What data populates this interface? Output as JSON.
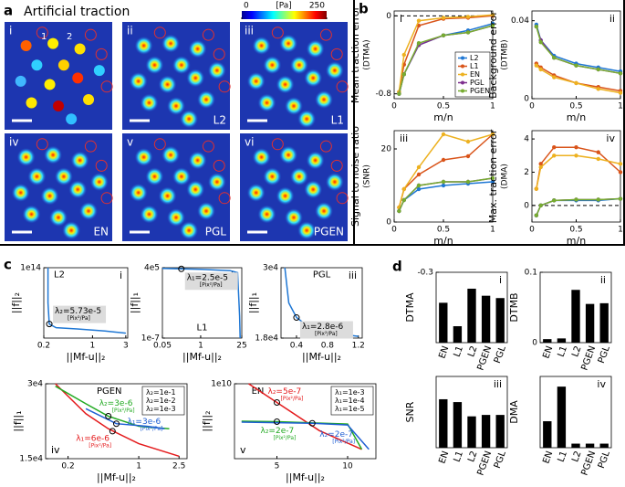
{
  "panel_labels": [
    "a",
    "b",
    "c",
    "d"
  ],
  "panel_a": {
    "title": "Artificial traction",
    "colorbar": {
      "lim": [
        0,
        250
      ],
      "ticks": [
        0,
        250
      ],
      "unit": "[Pa]"
    },
    "cell_ids": [
      "1",
      "2"
    ],
    "tiles": [
      {
        "numeral": "i"
      },
      {
        "numeral": "ii",
        "method": "L2"
      },
      {
        "numeral": "iii",
        "method": "L1"
      },
      {
        "numeral": "iv",
        "method": "EN"
      },
      {
        "numeral": "v",
        "method": "PGL"
      },
      {
        "numeral": "vi",
        "method": "PGEN"
      }
    ]
  },
  "chart_data": [
    {
      "type": "line",
      "numeral": "i",
      "ylabel": [
        "Mean traction error",
        "(DTMA)"
      ],
      "xlabel": "m/n",
      "x": [
        0.05,
        0.1,
        0.25,
        0.5,
        0.75,
        1
      ],
      "xlim": [
        0,
        1
      ],
      "xticks": [
        0,
        0.5,
        1
      ],
      "ylim": [
        -0.85,
        0.05
      ],
      "yticks": [
        -0.8,
        0
      ],
      "reference_line": 0,
      "markers": true,
      "legend": "lower right",
      "series": [
        {
          "name": "L2",
          "color": "#1f77d4",
          "values": [
            -0.8,
            -0.6,
            -0.3,
            -0.2,
            -0.15,
            -0.08
          ]
        },
        {
          "name": "L1",
          "color": "#d9541a",
          "values": [
            -0.78,
            -0.5,
            -0.1,
            -0.03,
            -0.02,
            0
          ]
        },
        {
          "name": "EN",
          "color": "#edb120",
          "values": [
            -0.78,
            -0.4,
            -0.05,
            -0.02,
            -0.01,
            0.01
          ]
        },
        {
          "name": "PGL",
          "color": "#7e2f8e",
          "values": [
            -0.8,
            -0.6,
            -0.3,
            -0.2,
            -0.17,
            -0.1
          ]
        },
        {
          "name": "PGEN",
          "color": "#77ac30",
          "values": [
            -0.8,
            -0.6,
            -0.28,
            -0.2,
            -0.17,
            -0.1
          ]
        }
      ]
    },
    {
      "type": "line",
      "numeral": "ii",
      "ylabel": [
        "Background error",
        "(DTMB)"
      ],
      "xlabel": "m/n",
      "x": [
        0.05,
        0.1,
        0.25,
        0.5,
        0.75,
        1
      ],
      "xlim": [
        0,
        1
      ],
      "xticks": [
        0,
        0.5,
        1
      ],
      "ylim": [
        0,
        0.045
      ],
      "yticks": [
        0,
        0.04
      ],
      "markers": true,
      "series": [
        {
          "color": "#1f77d4",
          "values": [
            0.038,
            0.03,
            0.022,
            0.018,
            0.016,
            0.014
          ]
        },
        {
          "color": "#d9541a",
          "values": [
            0.018,
            0.016,
            0.012,
            0.008,
            0.006,
            0.004
          ]
        },
        {
          "color": "#edb120",
          "values": [
            0.017,
            0.015,
            0.011,
            0.008,
            0.005,
            0.003
          ]
        },
        {
          "color": "#7e2f8e",
          "values": [
            0.037,
            0.03,
            0.021,
            0.017,
            0.015,
            0.013
          ]
        },
        {
          "color": "#77ac30",
          "values": [
            0.037,
            0.029,
            0.021,
            0.017,
            0.015,
            0.013
          ]
        }
      ]
    },
    {
      "type": "line",
      "numeral": "iii",
      "ylabel": [
        "Signal to noise ratio",
        "(SNR)"
      ],
      "xlabel": "m/n",
      "x": [
        0.05,
        0.1,
        0.25,
        0.5,
        0.75,
        1
      ],
      "xlim": [
        0,
        1
      ],
      "xticks": [
        0,
        0.5,
        1
      ],
      "ylim": [
        0,
        25
      ],
      "yticks": [
        0,
        20
      ],
      "markers": true,
      "series": [
        {
          "color": "#1f77d4",
          "values": [
            3,
            6,
            9,
            10,
            10.5,
            11
          ]
        },
        {
          "color": "#d9541a",
          "values": [
            4,
            9,
            13,
            17,
            18,
            24
          ]
        },
        {
          "color": "#edb120",
          "values": [
            4,
            9,
            15,
            24,
            22,
            24
          ]
        },
        {
          "color": "#7e2f8e",
          "values": [
            3,
            6,
            10,
            11,
            11,
            12
          ]
        },
        {
          "color": "#77ac30",
          "values": [
            3,
            6,
            10,
            11,
            11,
            12
          ]
        }
      ]
    },
    {
      "type": "line",
      "numeral": "iv",
      "ylabel": [
        "Max. traction error",
        "(DMA)"
      ],
      "xlabel": "m/n",
      "x": [
        0.05,
        0.1,
        0.25,
        0.5,
        0.75,
        1
      ],
      "xlim": [
        0,
        1
      ],
      "xticks": [
        0,
        0.5,
        1
      ],
      "ylim": [
        -1,
        4.5
      ],
      "yticks": [
        0,
        2,
        4
      ],
      "reference_line": 0,
      "markers": true,
      "series": [
        {
          "color": "#1f77d4",
          "values": [
            -0.6,
            0,
            0.3,
            0.3,
            0.3,
            0.4
          ]
        },
        {
          "color": "#d9541a",
          "values": [
            1,
            2.5,
            3.5,
            3.5,
            3.2,
            2
          ]
        },
        {
          "color": "#edb120",
          "values": [
            1,
            2.3,
            3,
            3,
            2.8,
            2.5
          ]
        },
        {
          "color": "#7e2f8e",
          "values": [
            -0.6,
            0,
            0.3,
            0.35,
            0.35,
            0.4
          ]
        },
        {
          "color": "#77ac30",
          "values": [
            -0.6,
            0,
            0.3,
            0.35,
            0.35,
            0.4
          ]
        }
      ]
    },
    {
      "type": "line",
      "numeral": "i",
      "title": "L2",
      "ylabel": [
        "||f||₂"
      ],
      "xlabel": "||Mf-u||₂",
      "xscale": "log",
      "yscale": "log",
      "xlim": [
        0.2,
        3.2
      ],
      "xticks": [
        0.2,
        1,
        3
      ],
      "ylim": [
        10000,
        100000000000000.0
      ],
      "yticks": [
        {
          "value": 100000000000000.0,
          "label": "1e14"
        }
      ],
      "series": [
        {
          "color": "#1f77d4",
          "x": [
            0.23,
            0.23,
            0.24,
            0.3,
            0.6,
            1.5,
            3
          ],
          "values": [
            100000000000000.0,
            1000000000.0,
            1000000.0,
            300000,
            200000,
            100000,
            50000
          ]
        }
      ],
      "annotations": [
        {
          "text": "λ₂=5.73e-5",
          "unit": "[Pix²/Pa]",
          "color": "#000000",
          "x": 0.24,
          "y": 1000000.0
        }
      ]
    },
    {
      "type": "line",
      "numeral": "ii",
      "title": "L1",
      "ylabel": [
        "||f||₁"
      ],
      "xlabel": "||Mf-u||₂",
      "xscale": "log",
      "yscale": "log",
      "xlim": [
        0.05,
        25
      ],
      "xticks": [
        0.05,
        1,
        25
      ],
      "ylim": [
        1e-07,
        400000
      ],
      "yticks": [
        {
          "value": 400000,
          "label": "4e5"
        },
        {
          "value": 1e-07,
          "label": "1e-7"
        }
      ],
      "series": [
        {
          "color": "#1f77d4",
          "x": [
            0.05,
            1,
            10,
            18,
            21,
            22
          ],
          "values": [
            300000,
            200000,
            120000,
            50000,
            0.001,
            1e-07
          ]
        }
      ],
      "annotations": [
        {
          "text": "λ₁=2.5e-5",
          "unit": "[Pix²/Pa]",
          "color": "#000000",
          "x": 0.22,
          "y": 250000
        }
      ]
    },
    {
      "type": "line",
      "numeral": "iii",
      "title": "PGL",
      "ylabel": [
        "||f||₁"
      ],
      "xlabel": "||Mf-u||₂",
      "xlim": [
        0.2,
        1.25
      ],
      "xticks": [
        0.4,
        0.8,
        1.2
      ],
      "ylim": [
        18000,
        30000
      ],
      "yticks": [
        {
          "value": 30000,
          "label": "3e4"
        },
        {
          "value": 18000,
          "label": "1.8e4"
        }
      ],
      "series": [
        {
          "color": "#1f77d4",
          "x": [
            0.25,
            0.3,
            0.4,
            0.6,
            0.9,
            1.2
          ],
          "values": [
            30000,
            24000,
            21500,
            19500,
            18800,
            18300
          ]
        }
      ],
      "annotations": [
        {
          "text": "λ₁=2.8e-6",
          "unit": "[Pix²/Pa]",
          "color": "#000000",
          "x": 0.4,
          "y": 21500
        }
      ]
    },
    {
      "type": "line",
      "numeral": "iv",
      "title": "PGEN",
      "ylabel": [
        "||f||₁"
      ],
      "xlabel": "||Mf-u||₂",
      "xscale": "log",
      "xlim": [
        0.12,
        3
      ],
      "xticks": [
        0.2,
        1,
        2.5
      ],
      "ylim": [
        15000,
        30000
      ],
      "yticks": [
        {
          "value": 30000,
          "label": "3e4"
        },
        {
          "value": 15000,
          "label": "1.5e4"
        }
      ],
      "legend": "upper right",
      "legend_swatches": false,
      "series": [
        {
          "name": "λ₂=1e-1",
          "color": "#e41a1c",
          "x": [
            0.15,
            0.3,
            0.5,
            1,
            2.5
          ],
          "values": [
            30000,
            24000,
            21000,
            18000,
            15500
          ]
        },
        {
          "name": "λ₂=1e-2",
          "color": "#22aa22",
          "x": [
            0.15,
            0.3,
            0.5,
            1,
            2
          ],
          "values": [
            29500,
            26000,
            23500,
            21500,
            21000
          ]
        },
        {
          "name": "λ₂=1e-3",
          "color": "#1f5fd4",
          "x": [
            0.3,
            0.6,
            1.2,
            1.8
          ],
          "values": [
            25000,
            22000,
            21500,
            21000
          ]
        }
      ],
      "annotations": [
        {
          "text": "λ₂=3e-6",
          "unit": "[Pix²/Pa]",
          "color": "#22aa22",
          "x": 0.5,
          "y": 23500
        },
        {
          "text": "λ₁=3e-6",
          "unit": "[Pix²/Pa]",
          "color": "#1f5fd4",
          "x": 0.6,
          "y": 22000
        },
        {
          "text": "λ₁=6e-6",
          "unit": "[Pix²/Pa]",
          "color": "#e41a1c",
          "x": 0.55,
          "y": 20500
        }
      ]
    },
    {
      "type": "line",
      "numeral": "v",
      "title": "EN",
      "ylabel": [
        "||f||₂"
      ],
      "xlabel": "||Mf-u||₂",
      "yscale": "log",
      "xlim": [
        2,
        12
      ],
      "xticks": [
        5,
        10
      ],
      "ylim": [
        100,
        10000000000.0
      ],
      "yticks": [
        {
          "value": 10000000000.0,
          "label": "1e10"
        }
      ],
      "legend": "upper right",
      "legend_swatches": false,
      "series": [
        {
          "name": "λ₁=1e-3",
          "color": "#e41a1c",
          "x": [
            3,
            5,
            8,
            11
          ],
          "values": [
            10000000000.0,
            100000000.0,
            100000,
            1000
          ]
        },
        {
          "name": "λ₁=1e-4",
          "color": "#22aa22",
          "x": [
            2.5,
            5,
            10,
            11
          ],
          "values": [
            1000000.0,
            900000,
            500000,
            1000
          ]
        },
        {
          "name": "λ₁=1e-5",
          "color": "#1f5fd4",
          "x": [
            2.5,
            7.5,
            10,
            11.5
          ],
          "values": [
            800000,
            600000,
            400000,
            1000
          ]
        }
      ],
      "annotations": [
        {
          "text": "λ₂=5e-7",
          "unit": "[Pix²/Pa]",
          "color": "#e41a1c",
          "x": 5,
          "y": 100000000.0
        },
        {
          "text": "λ₂=2e-7",
          "unit": "[Pix²/Pa]",
          "color": "#22aa22",
          "x": 5,
          "y": 900000
        },
        {
          "text": "λ₂=2e-7",
          "unit": "[Pix²/Pa]",
          "color": "#1f5fd4",
          "x": 7.5,
          "y": 600000
        }
      ]
    },
    {
      "type": "bar",
      "numeral": "i",
      "ylabel": [
        "DTMA"
      ],
      "categories": [
        "EN",
        "L1",
        "L2",
        "PGEN",
        "PGL"
      ],
      "values": [
        -0.17,
        -0.07,
        -0.23,
        -0.2,
        -0.19
      ],
      "color": "#000000",
      "ylim": [
        0,
        -0.3
      ],
      "yticks": [
        -0.3
      ]
    },
    {
      "type": "bar",
      "numeral": "ii",
      "ylabel": [
        "DTMB"
      ],
      "categories": [
        "EN",
        "L1",
        "L2",
        "PGEN",
        "PGL"
      ],
      "values": [
        0.005,
        0.006,
        0.075,
        0.055,
        0.056
      ],
      "color": "#000000",
      "ylim": [
        0,
        0.1
      ],
      "yticks": [
        0,
        0.1
      ]
    },
    {
      "type": "bar",
      "numeral": "iii",
      "ylabel": [
        "SNR"
      ],
      "categories": [
        "EN",
        "L1",
        "L2",
        "PGEN",
        "PGL"
      ],
      "values": [
        17,
        16,
        11,
        11.5,
        11.5
      ],
      "color": "#000000",
      "ylim": [
        0,
        25
      ],
      "yticks": []
    },
    {
      "type": "bar",
      "numeral": "iv",
      "ylabel": [
        "DMA"
      ],
      "categories": [
        "EN",
        "L1",
        "L2",
        "PGEN",
        "PGL"
      ],
      "values": [
        1.3,
        3,
        0.2,
        0.2,
        0.2
      ],
      "color": "#000000",
      "ylim": [
        0,
        3.5
      ],
      "yticks": []
    }
  ]
}
